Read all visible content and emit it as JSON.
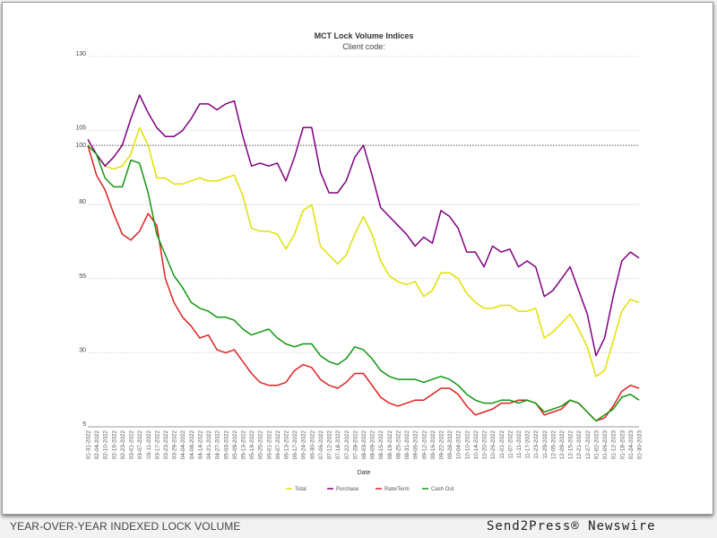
{
  "chart_data": {
    "type": "line",
    "title": "MCT Lock Volume Indices",
    "subtitle": "Client code:",
    "xlabel": "Date",
    "ylabel": "",
    "ylim": [
      5,
      130
    ],
    "yticks": [
      5,
      30,
      55,
      80,
      100,
      105,
      130
    ],
    "reference_line": 100,
    "grid": true,
    "legend_position": "bottom-center",
    "x": [
      "01-31-2022",
      "02-04-2022",
      "02-10-2022",
      "02-16-2022",
      "02-23-2022",
      "03-01-2022",
      "03-07-2022",
      "03-11-2022",
      "03-17-2022",
      "03-23-2022",
      "03-29-2022",
      "04-04-2022",
      "04-08-2022",
      "04-14-2022",
      "04-21-2022",
      "04-27-2022",
      "05-03-2022",
      "05-09-2022",
      "05-13-2022",
      "05-19-2022",
      "05-25-2022",
      "06-01-2022",
      "06-07-2022",
      "06-13-2022",
      "06-17-2022",
      "06-24-2022",
      "06-30-2022",
      "07-06-2022",
      "07-12-2022",
      "07-18-2022",
      "07-22-2022",
      "07-28-2022",
      "08-03-2022",
      "08-09-2022",
      "08-15-2022",
      "08-19-2022",
      "08-25-2022",
      "08-31-2022",
      "09-06-2022",
      "09-12-2022",
      "09-16-2022",
      "09-22-2022",
      "09-28-2022",
      "10-04-2022",
      "10-10-2022",
      "10-14-2022",
      "10-20-2022",
      "10-26-2022",
      "11-01-2022",
      "11-07-2022",
      "11-11-2022",
      "11-17-2022",
      "11-23-2022",
      "11-29-2022",
      "12-05-2022",
      "12-09-2022",
      "12-15-2022",
      "12-21-2022",
      "12-27-2022",
      "01-02-2023",
      "01-06-2023",
      "01-12-2023",
      "01-18-2023",
      "01-24-2023",
      "01-30-2023"
    ],
    "series": [
      {
        "name": "Total",
        "color": "#e0e000",
        "values": [
          100,
          97,
          93,
          92,
          93,
          97,
          106,
          100,
          89,
          89,
          87,
          87,
          88,
          89,
          88,
          88,
          89,
          90,
          83,
          72,
          71,
          71,
          70,
          65,
          70,
          78,
          80,
          66,
          63,
          60,
          63,
          70,
          76,
          70,
          61,
          56,
          54,
          53,
          54,
          49,
          51,
          57,
          57,
          55,
          50,
          47,
          45,
          45,
          46,
          46,
          44,
          44,
          45,
          35,
          37,
          40,
          43,
          38,
          32,
          22,
          24,
          34,
          44,
          48,
          47
        ]
      },
      {
        "name": "Purchase",
        "color": "#800080",
        "values": [
          102,
          97,
          93,
          96,
          100,
          109,
          117,
          111,
          106,
          103,
          103,
          105,
          109,
          114,
          114,
          112,
          114,
          115,
          103,
          93,
          94,
          93,
          94,
          88,
          96,
          106,
          106,
          91,
          84,
          84,
          88,
          96,
          100,
          90,
          79,
          76,
          73,
          70,
          66,
          69,
          67,
          78,
          76,
          72,
          64,
          64,
          59,
          66,
          64,
          65,
          59,
          61,
          59,
          49,
          51,
          55,
          59,
          51,
          43,
          29,
          35,
          49,
          61,
          64,
          62
        ]
      },
      {
        "name": "Rate/Term",
        "color": "#e02020",
        "values": [
          100,
          90,
          85,
          77,
          70,
          68,
          71,
          77,
          73,
          55,
          47,
          42,
          39,
          35,
          36,
          31,
          30,
          31,
          27,
          23,
          20,
          19,
          19,
          20,
          24,
          26,
          25,
          21,
          19,
          18,
          20,
          23,
          23,
          19,
          15,
          13,
          12,
          13,
          14,
          14,
          16,
          18,
          18,
          16,
          12,
          9,
          10,
          11,
          13,
          13,
          14,
          14,
          13,
          9,
          10,
          11,
          14,
          13,
          10,
          7,
          8,
          12,
          17,
          19,
          18
        ]
      },
      {
        "name": "Cash Out",
        "color": "#129612",
        "values": [
          100,
          97,
          89,
          86,
          86,
          95,
          94,
          84,
          70,
          63,
          56,
          52,
          47,
          45,
          44,
          42,
          42,
          41,
          38,
          36,
          37,
          38,
          35,
          33,
          32,
          33,
          33,
          29,
          27,
          26,
          28,
          32,
          31,
          28,
          24,
          22,
          21,
          21,
          21,
          20,
          21,
          22,
          21,
          19,
          16,
          14,
          13,
          13,
          14,
          14,
          13,
          14,
          13,
          10,
          11,
          12,
          14,
          13,
          10,
          7,
          9,
          11,
          15,
          16,
          14
        ]
      }
    ]
  },
  "footer": {
    "caption": "YEAR-OVER-YEAR INDEXED LOCK VOLUME",
    "brand": "Send2Press® Newswire"
  }
}
